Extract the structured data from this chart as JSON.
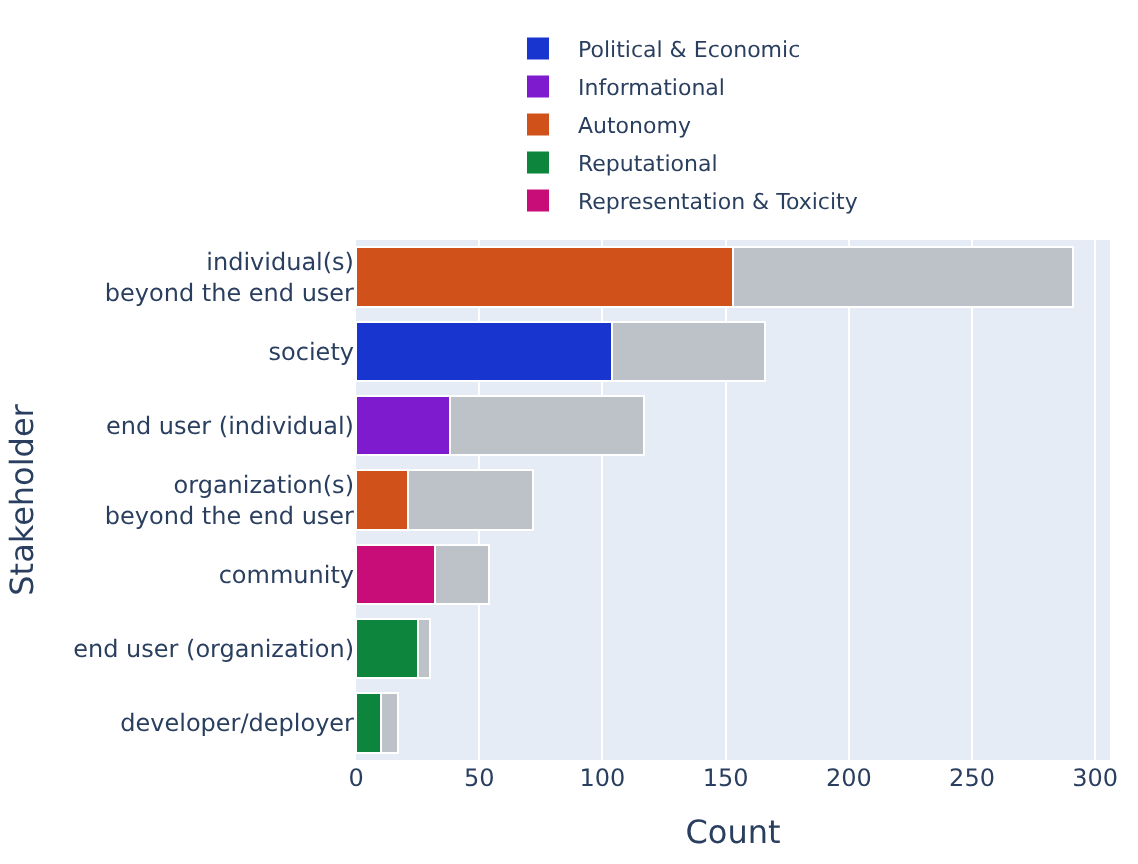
{
  "chart_data": {
    "type": "bar",
    "orientation": "horizontal",
    "stacked": true,
    "categories": [
      "individual(s)\nbeyond the end user",
      "society",
      "end user (individual)",
      "organization(s)\nbeyond the end user",
      "community",
      "end user (organization)",
      "developer/deployer"
    ],
    "series": [
      {
        "name": "Political & Economic",
        "color": "#1935cf",
        "values": [
          null,
          104,
          null,
          null,
          null,
          null,
          null
        ]
      },
      {
        "name": "Informational",
        "color": "#7e1bcf",
        "values": [
          null,
          null,
          38,
          null,
          null,
          null,
          null
        ]
      },
      {
        "name": "Autonomy",
        "color": "#d05119",
        "values": [
          153,
          null,
          null,
          21,
          null,
          null,
          null
        ]
      },
      {
        "name": "Reputational",
        "color": "#0e853c",
        "values": [
          null,
          null,
          null,
          null,
          null,
          25,
          10
        ]
      },
      {
        "name": "Representation & Toxicity",
        "color": "#c80c78",
        "values": [
          null,
          null,
          null,
          null,
          32,
          null,
          null
        ]
      },
      {
        "color": "#bdc1c8",
        "values": [
          138,
          62,
          79,
          51,
          22,
          5,
          7
        ]
      }
    ],
    "xlabel": "Count",
    "ylabel": "Stakeholder",
    "xlim": [
      0,
      306
    ],
    "xticks": [
      0,
      50,
      100,
      150,
      200,
      250,
      300
    ],
    "grid": "x",
    "legend": "top"
  }
}
